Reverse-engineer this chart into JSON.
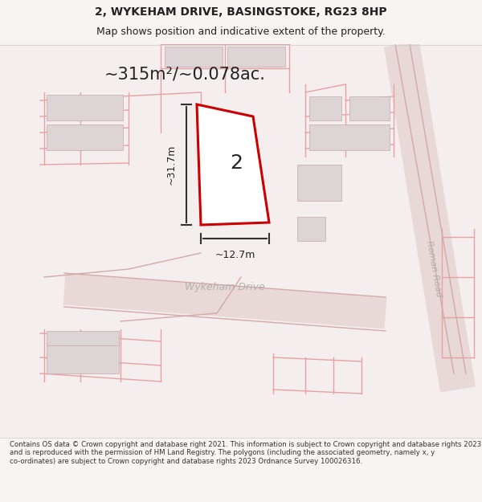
{
  "title_line1": "2, WYKEHAM DRIVE, BASINGSTOKE, RG23 8HP",
  "title_line2": "Map shows position and indicative extent of the property.",
  "area_label": "~315m²/~0.078ac.",
  "property_number": "2",
  "dim_vertical": "~31.7m",
  "dim_horizontal": "~12.7m",
  "street_name": "Wykeham Drive",
  "road_name": "Roman Road",
  "footer_text": "Contains OS data © Crown copyright and database right 2021. This information is subject to Crown copyright and database rights 2023 and is reproduced with the permission of HM Land Registry. The polygons (including the associated geometry, namely x, y co-ordinates) are subject to Crown copyright and database rights 2023 Ordnance Survey 100026316.",
  "bg_color": "#f5f0f0",
  "map_bg": "#ffffff",
  "road_fill": "#e8e0e0",
  "property_outline_color": "#cc0000",
  "property_fill": "#ffffff",
  "grid_line_color": "#e8b8b8",
  "building_fill": "#e0d8d8",
  "dim_line_color": "#333333",
  "text_color": "#222222",
  "road_text_color": "#888888"
}
